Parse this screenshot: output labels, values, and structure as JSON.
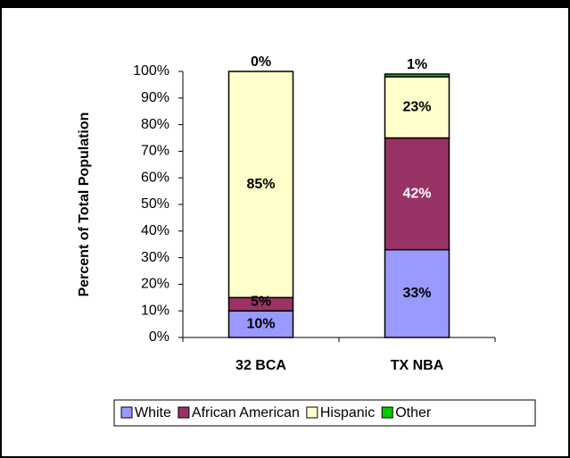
{
  "chart_data": {
    "type": "stacked_bar",
    "y_label": "Percent of Total Population",
    "categories": [
      "32 BCA",
      "TX NBA"
    ],
    "series": [
      {
        "name": "White",
        "color": "#9999ff",
        "values": [
          10,
          33
        ],
        "value_labels": [
          "10%",
          "33%"
        ]
      },
      {
        "name": "African American",
        "color": "#993366",
        "values": [
          5,
          42
        ],
        "value_labels": [
          "5%",
          "42%"
        ]
      },
      {
        "name": "Hispanic",
        "color": "#ffffcc",
        "values": [
          85,
          23
        ],
        "value_labels": [
          "85%",
          "23%"
        ]
      },
      {
        "name": "Other",
        "color": "#00cc00",
        "values": [
          0,
          1
        ],
        "value_labels": [
          "0%",
          "1%"
        ]
      }
    ],
    "ylim": [
      0,
      100
    ],
    "yticks": [
      {
        "value": 0,
        "label": "0%"
      },
      {
        "value": 10,
        "label": "10%"
      },
      {
        "value": 20,
        "label": "20%"
      },
      {
        "value": 30,
        "label": "30%"
      },
      {
        "value": 40,
        "label": "40%"
      },
      {
        "value": 50,
        "label": "50%"
      },
      {
        "value": 60,
        "label": "60%"
      },
      {
        "value": 70,
        "label": "70%"
      },
      {
        "value": 80,
        "label": "80%"
      },
      {
        "value": 90,
        "label": "90%"
      },
      {
        "value": 100,
        "label": "100%"
      }
    ],
    "legend": "bottom"
  }
}
